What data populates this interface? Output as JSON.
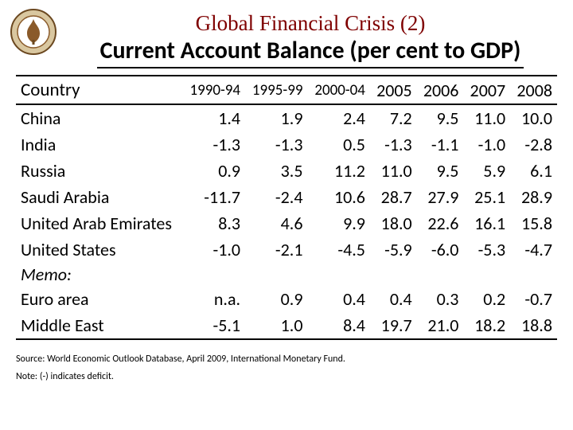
{
  "title": {
    "main": "Global Financial Crisis (2)",
    "sub": "Current Account Balance (per cent to GDP)"
  },
  "logo": {
    "outer_color": "#8a5a2a",
    "inner_color": "#d9c7a0",
    "ring_color": "#6b4820"
  },
  "table": {
    "header": {
      "country": "Country",
      "cols_small": [
        "1990-94",
        "1995-99",
        "2000-04"
      ],
      "cols_big": [
        "2005",
        "2006",
        "2007",
        "2008"
      ]
    },
    "rows": [
      {
        "country": "China",
        "v": [
          "1.4",
          "1.9",
          "2.4",
          "7.2",
          "9.5",
          "11.0",
          "10.0"
        ]
      },
      {
        "country": "India",
        "v": [
          "-1.3",
          "-1.3",
          "0.5",
          "-1.3",
          "-1.1",
          "-1.0",
          "-2.8"
        ]
      },
      {
        "country": "Russia",
        "v": [
          "0.9",
          "3.5",
          "11.2",
          "11.0",
          "9.5",
          "5.9",
          "6.1"
        ]
      },
      {
        "country": "Saudi Arabia",
        "v": [
          "-11.7",
          "-2.4",
          "10.6",
          "28.7",
          "27.9",
          "25.1",
          "28.9"
        ]
      },
      {
        "country": "United Arab Emirates",
        "v": [
          "8.3",
          "4.6",
          "9.9",
          "18.0",
          "22.6",
          "16.1",
          "15.8"
        ]
      },
      {
        "country": "United States",
        "v": [
          "-1.0",
          "-2.1",
          "-4.5",
          "-5.9",
          "-6.0",
          "-5.3",
          "-4.7"
        ]
      }
    ],
    "memo_label": "Memo:",
    "memo_rows": [
      {
        "country": "Euro area",
        "v": [
          "n.a.",
          "0.9",
          "0.4",
          "0.4",
          "0.3",
          "0.2",
          "-0.7"
        ]
      },
      {
        "country": "Middle East",
        "v": [
          "-5.1",
          "1.0",
          "8.4",
          "19.7",
          "21.0",
          "18.2",
          "18.8"
        ]
      }
    ]
  },
  "footnotes": {
    "source": "Source: World Economic Outlook Database, April 2009, International Monetary Fund.",
    "note": "Note: (-) indicates deficit."
  }
}
